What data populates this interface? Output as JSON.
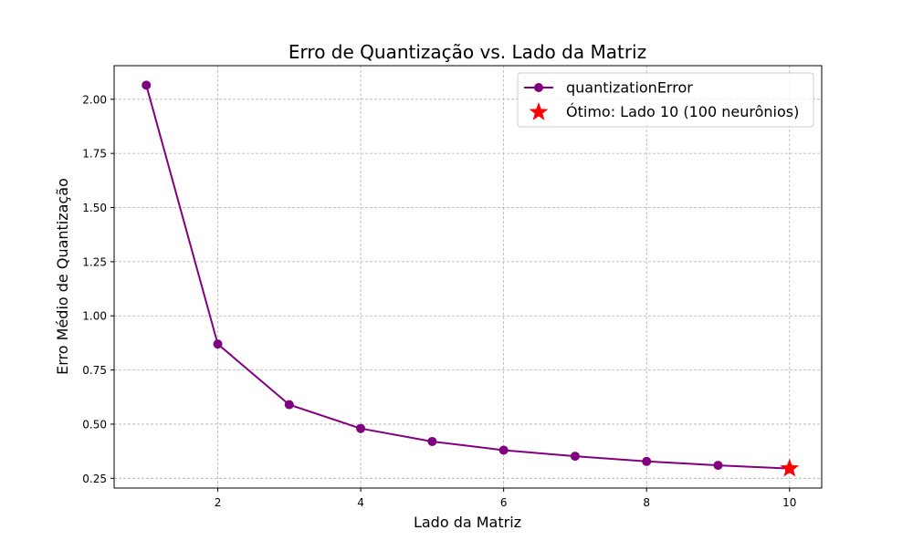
{
  "chart_data": {
    "type": "line",
    "title": "Erro de Quantização vs. Lado da Matriz",
    "xlabel": "Lado da Matriz",
    "ylabel": "Erro Médio de Quantização",
    "xlim": [
      0.55,
      10.45
    ],
    "ylim": [
      0.205,
      2.155
    ],
    "xticks": [
      2,
      4,
      6,
      8,
      10
    ],
    "yticks": [
      0.25,
      0.5,
      0.75,
      1.0,
      1.25,
      1.5,
      1.75,
      2.0
    ],
    "ytick_labels": [
      "0.25",
      "0.50",
      "0.75",
      "1.00",
      "1.25",
      "1.50",
      "1.75",
      "2.00"
    ],
    "grid": true,
    "legend_position": "top-right",
    "series": [
      {
        "name": "quantizationError",
        "color": "#800080",
        "marker": "circle",
        "x": [
          1,
          2,
          3,
          4,
          5,
          6,
          7,
          8,
          9,
          10
        ],
        "y": [
          2.065,
          0.87,
          0.59,
          0.48,
          0.42,
          0.38,
          0.352,
          0.328,
          0.31,
          0.295
        ]
      }
    ],
    "highlight": {
      "name": "Ótimo: Lado 10 (100 neurônios)",
      "color": "#ff0000",
      "marker": "star",
      "x": 10,
      "y": 0.295
    }
  }
}
